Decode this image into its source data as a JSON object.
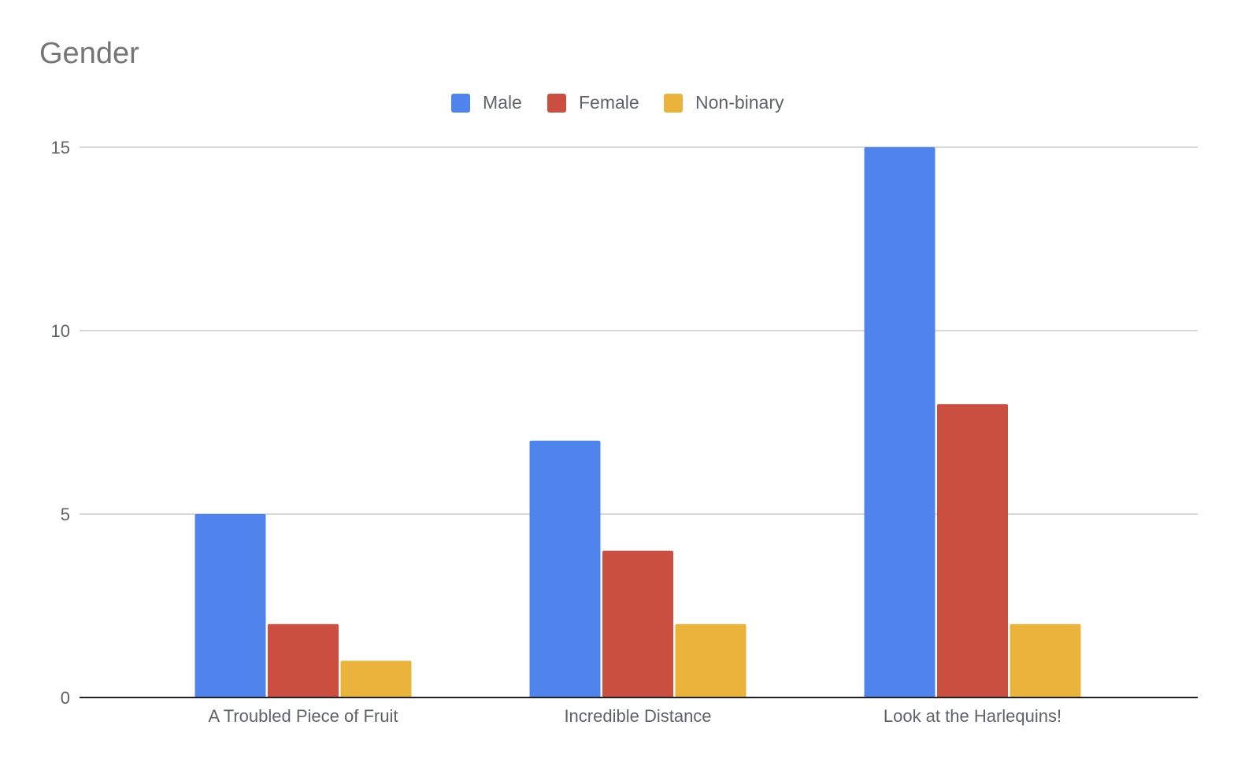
{
  "chart_data": {
    "type": "bar",
    "title": "Gender",
    "categories": [
      "A Troubled Piece of Fruit",
      "Incredible Distance",
      "Look at the Harlequins!"
    ],
    "series": [
      {
        "name": "Male",
        "color": "#4f84ec",
        "values": [
          5,
          7,
          15
        ]
      },
      {
        "name": "Female",
        "color": "#cb4f41",
        "values": [
          2,
          4,
          8
        ]
      },
      {
        "name": "Non-binary",
        "color": "#eab43c",
        "values": [
          1,
          2,
          2
        ]
      }
    ],
    "xlabel": "",
    "ylabel": "",
    "ylim": [
      0,
      15
    ],
    "yticks": [
      0,
      5,
      10,
      15
    ],
    "grid": true,
    "legend_position": "top-center"
  }
}
